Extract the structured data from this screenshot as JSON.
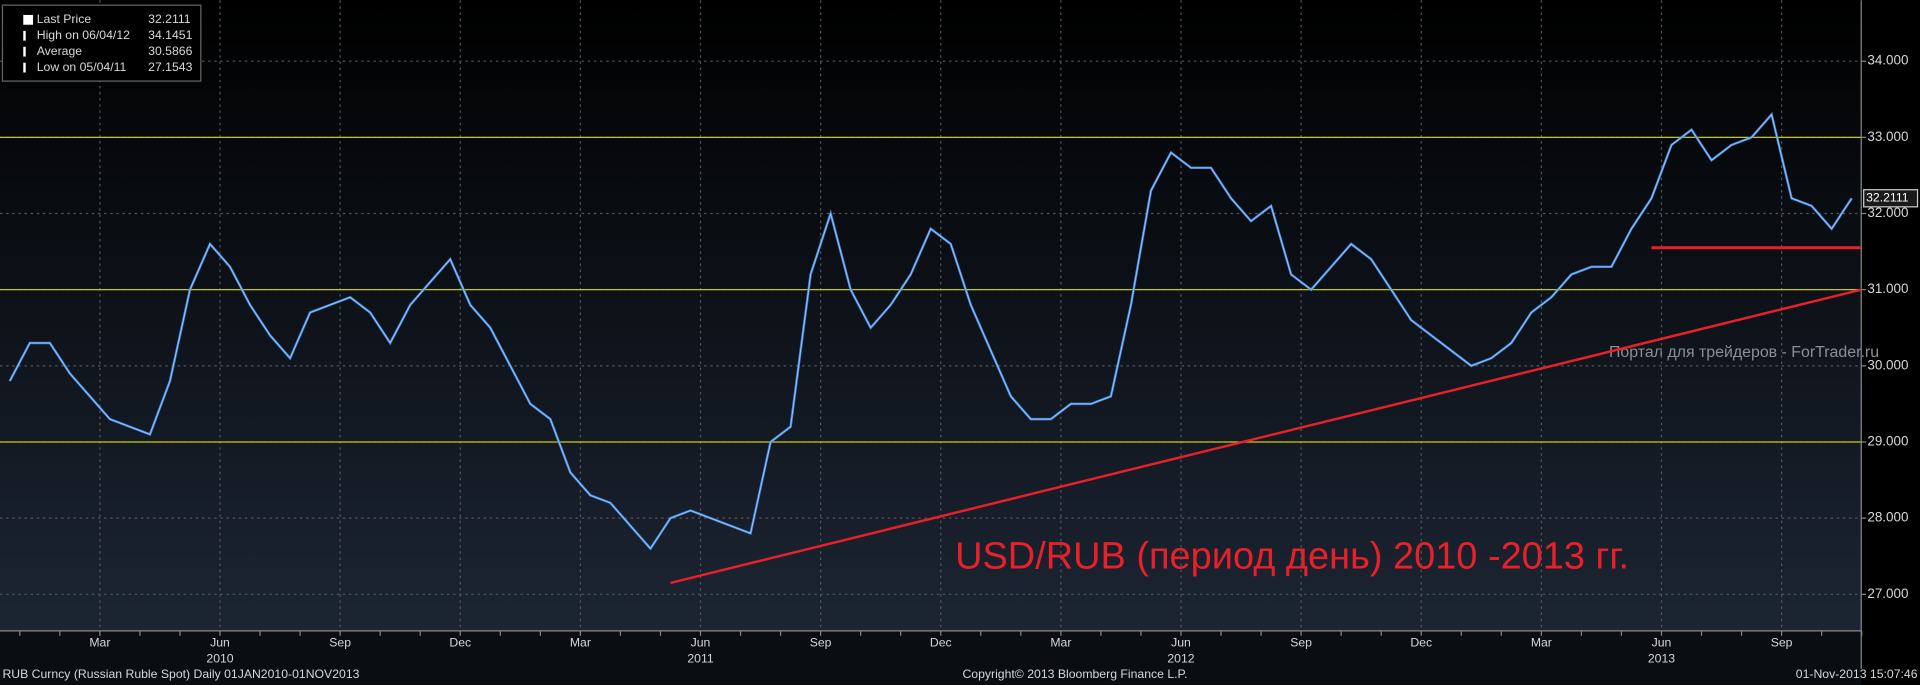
{
  "chart_data": {
    "type": "line",
    "title": "USD/RUB (период день) 2010 -2013 гг.",
    "watermark": "Портал для трейдеров - ForTrader.ru",
    "categories": [
      "",
      null,
      "",
      null,
      "Mar",
      null,
      "",
      null,
      "",
      null,
      "Jun",
      null,
      "",
      null,
      "",
      null,
      "Sep",
      null,
      "",
      null,
      "",
      null,
      "Dec",
      null,
      "",
      null,
      "",
      null,
      "Mar",
      null,
      "",
      null,
      "",
      null,
      "Jun",
      null,
      "",
      null,
      "",
      null,
      "Sep",
      null,
      "",
      null,
      "",
      null,
      "Dec",
      null,
      "",
      null,
      "",
      null,
      "Mar",
      null,
      "",
      null,
      "",
      null,
      "Jun",
      null,
      "",
      null,
      "",
      null,
      "Sep",
      null,
      "",
      null,
      "",
      null,
      "Dec",
      null,
      "",
      null,
      "",
      null,
      "Mar",
      null,
      "",
      null,
      "",
      null,
      "Jun",
      null,
      "",
      null,
      "",
      null,
      "Sep",
      null,
      "",
      null,
      ""
    ],
    "years": [
      "2010",
      "2011",
      "2012",
      "2013"
    ],
    "series": [
      {
        "name": "Last Price",
        "color": "#3d86e0",
        "values": [
          29.8,
          30.3,
          30.3,
          29.9,
          29.6,
          29.3,
          29.2,
          29.1,
          29.8,
          31.0,
          31.6,
          31.3,
          30.8,
          30.4,
          30.1,
          30.7,
          30.8,
          30.9,
          30.7,
          30.3,
          30.8,
          31.1,
          31.4,
          30.8,
          30.5,
          30.0,
          29.5,
          29.3,
          28.6,
          28.3,
          28.2,
          27.9,
          27.6,
          28.0,
          28.1,
          28.0,
          27.9,
          27.8,
          29.0,
          29.2,
          31.2,
          32.0,
          31.0,
          30.5,
          30.8,
          31.2,
          31.8,
          31.6,
          30.8,
          30.2,
          29.6,
          29.3,
          29.3,
          29.5,
          29.5,
          29.6,
          30.8,
          32.3,
          32.8,
          32.6,
          32.6,
          32.2,
          31.9,
          32.1,
          31.2,
          31.0,
          31.3,
          31.6,
          31.4,
          31.0,
          30.6,
          30.4,
          30.2,
          30.0,
          30.1,
          30.3,
          30.7,
          30.9,
          31.2,
          31.3,
          31.3,
          31.8,
          32.2,
          32.9,
          33.1,
          32.7,
          32.9,
          33.0,
          33.3,
          32.2,
          32.1,
          31.8,
          32.2
        ]
      }
    ],
    "legend": [
      {
        "name": "Last Price",
        "value": "32.2111"
      },
      {
        "name": "High on 06/04/12",
        "value": "34.1451"
      },
      {
        "name": "Average",
        "value": "30.5866"
      },
      {
        "name": "Low on 05/04/11",
        "value": "27.1543"
      }
    ],
    "last_label": "32.2111",
    "hlines": [
      {
        "value": 33,
        "color": "#c8c800"
      },
      {
        "value": 31,
        "color": "#c8c800"
      },
      {
        "value": 29,
        "color": "#c8c800"
      }
    ],
    "trend": {
      "start": 27.15,
      "end": 31.0,
      "color": "#e8202a"
    },
    "support": {
      "value": 31.55,
      "color": "#e8202a"
    },
    "ylim": [
      26.52,
      34.8
    ],
    "yticks": [
      {
        "value": 27,
        "label": "27.000"
      },
      {
        "value": 28,
        "label": "28.000"
      },
      {
        "value": 29,
        "label": "29.000"
      },
      {
        "value": 30,
        "label": "30.000"
      },
      {
        "value": 31,
        "label": "31.000"
      },
      {
        "value": 32,
        "label": "32.000"
      },
      {
        "value": 33,
        "label": "33.000"
      },
      {
        "value": 34,
        "label": "34.000"
      }
    ],
    "grid": true,
    "footer": [
      "RUB Curncy (Russian Ruble Spot)  Daily 01JAN2010-01NOV2013",
      "Copyright© 2013 Bloomberg Finance L.P.",
      "01-Nov-2013 15:07:46"
    ]
  }
}
